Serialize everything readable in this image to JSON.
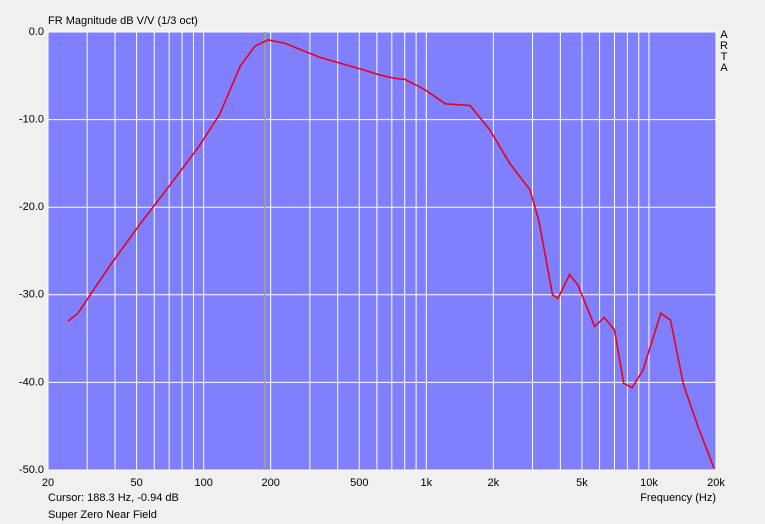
{
  "chart_data": {
    "type": "line",
    "title": "FR Magnitude dB V/V (1/3 oct)",
    "x_label": "Frequency (Hz)",
    "brand": "ARTA",
    "cursor": {
      "x": 188.3,
      "label": "Cursor: 188.3 Hz, -0.94 dB"
    },
    "caption": "Super Zero Near Field",
    "x": [
      24.6,
      27.3,
      30.2,
      37.9,
      51.5,
      70,
      95,
      118,
      146,
      170,
      195,
      232,
      333,
      502,
      618,
      723,
      800,
      988,
      1218,
      1572,
      1932,
      2370,
      2918,
      3200,
      3690,
      3900,
      4400,
      4800,
      5700,
      6300,
      7000,
      7700,
      8400,
      9400,
      11300,
      12500,
      14300,
      16800,
      19600
    ],
    "series": [
      {
        "color": "#e8001c",
        "values": [
          -33.0,
          -32.1,
          -30.4,
          -26.7,
          -22.0,
          -17.6,
          -13.1,
          -9.4,
          -3.9,
          -1.6,
          -0.9,
          -1.3,
          -2.9,
          -4.2,
          -4.9,
          -5.3,
          -5.4,
          -6.6,
          -8.2,
          -8.4,
          -11.2,
          -15.0,
          -18.0,
          -21.5,
          -30.0,
          -30.4,
          -27.7,
          -28.9,
          -33.6,
          -32.6,
          -34.0,
          -40.1,
          -40.6,
          -38.6,
          -32.1,
          -32.9,
          -40.3,
          -45.4,
          -49.8
        ]
      }
    ],
    "xscale": "log",
    "xlim": [
      20,
      20000
    ],
    "ylim": [
      -50,
      0
    ],
    "xticks": [
      20,
      50,
      100,
      200,
      500,
      {
        "value": 1000,
        "label": "1k"
      },
      {
        "value": 2000,
        "label": "2k"
      },
      {
        "value": 5000,
        "label": "5k"
      },
      {
        "value": 10000,
        "label": "10k"
      },
      {
        "value": 20000,
        "label": "20k"
      }
    ],
    "xminorticks": [
      30,
      40,
      60,
      70,
      80,
      90,
      300,
      400,
      600,
      700,
      800,
      900,
      3000,
      4000,
      6000,
      7000,
      8000,
      9000
    ],
    "yticks": [
      {
        "value": 0,
        "label": "0.0"
      },
      {
        "value": -10,
        "label": "-10.0"
      },
      {
        "value": -20,
        "label": "-20.0"
      },
      {
        "value": -30,
        "label": "-30.0"
      },
      {
        "value": -40,
        "label": "-40.0"
      },
      {
        "value": -50,
        "label": "-50.0"
      }
    ],
    "grid": true,
    "background": "#8080ff",
    "cursor_color": "#a0a0a0"
  }
}
